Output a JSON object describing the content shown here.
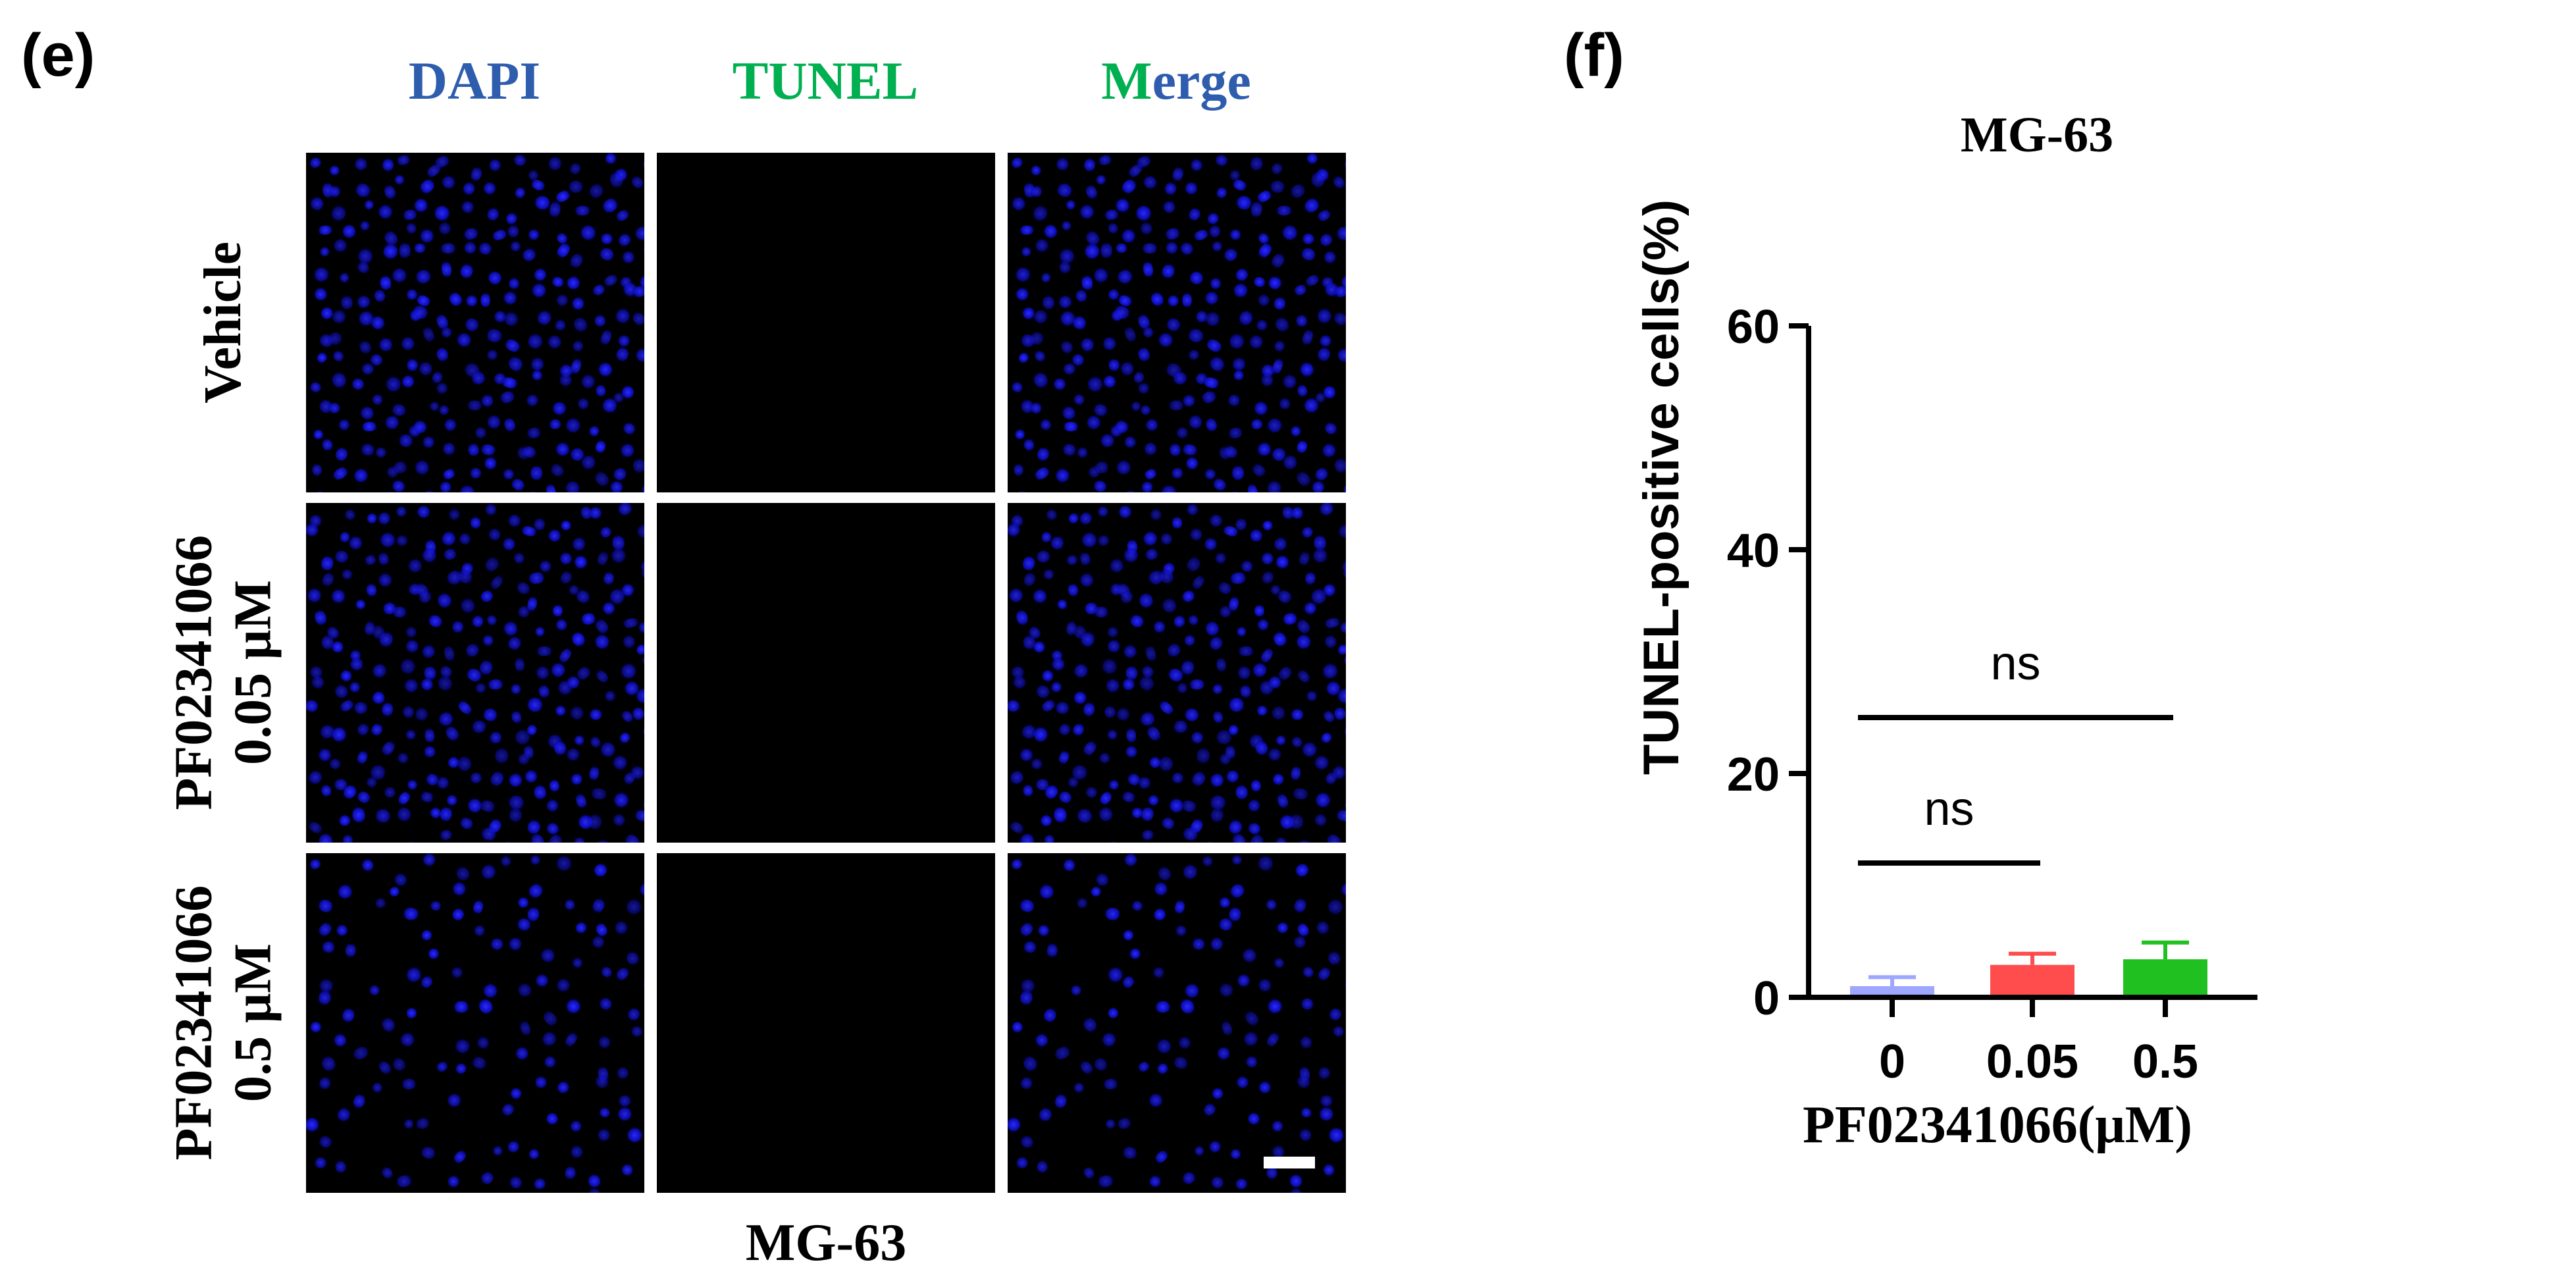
{
  "panel_e": {
    "letter": "(e)",
    "columns": [
      {
        "id": "dapi",
        "label": "DAPI",
        "color": "#2e5dae"
      },
      {
        "id": "tunel",
        "label": "TUNEL",
        "color": "#00b050"
      },
      {
        "id": "merge",
        "label_parts": [
          {
            "text": "M",
            "color": "#00b050"
          },
          {
            "text": "erge",
            "color": "#2e5dae"
          }
        ]
      }
    ],
    "rows": [
      {
        "lines": [
          "Vehicle"
        ]
      },
      {
        "lines": [
          "PF02341066",
          "0.05 μM"
        ]
      },
      {
        "lines": [
          "PF02341066",
          "0.5 μM"
        ]
      }
    ],
    "cell_line": "MG-63",
    "colors": {
      "nucleus": "#1010e6",
      "background": "#000000",
      "tunel": "#000000"
    }
  },
  "panel_f": {
    "letter": "(f)",
    "chart_data": {
      "type": "bar",
      "title": "MG-63",
      "xlabel": "PF02341066(μM)",
      "ylabel": "TUNEL-positive cells(%)",
      "categories": [
        "0",
        "0.05",
        "0.5"
      ],
      "values": [
        1.0,
        2.9,
        3.4
      ],
      "errors": [
        0.8,
        1.0,
        1.5
      ],
      "colors": [
        "#9fa6ff",
        "#ff4d4d",
        "#20c020"
      ],
      "ylim": [
        0,
        60
      ],
      "yticks": [
        0,
        20,
        40,
        60
      ],
      "significance": [
        {
          "from": 0,
          "to": 1,
          "y": 12,
          "label": "ns"
        },
        {
          "from": 0,
          "to": 2,
          "y": 25,
          "label": "ns"
        }
      ]
    }
  }
}
